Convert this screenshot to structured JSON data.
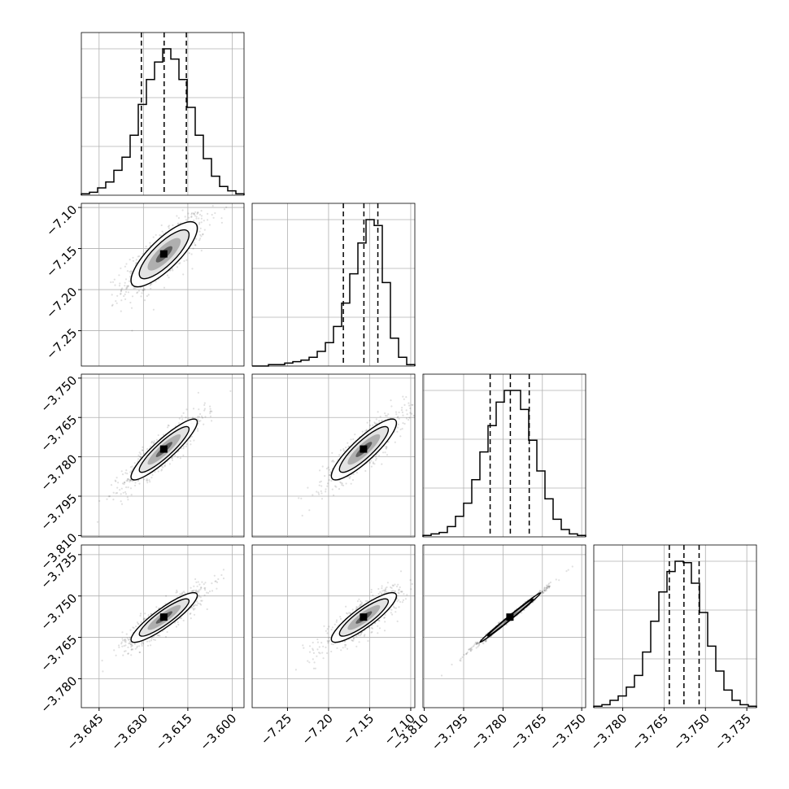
{
  "chart_data": {
    "type": "corner",
    "title": "",
    "grid": true,
    "parameters": [
      {
        "label": "",
        "range": [
          -3.651,
          -3.596
        ],
        "ticks": [
          -3.645,
          -3.63,
          -3.615,
          -3.6
        ],
        "tick_labels": [
          "−3.645",
          "−3.630",
          "−3.615",
          "−3.600"
        ],
        "quantiles": [
          -3.6307,
          -3.623,
          -3.6155
        ]
      },
      {
        "label": "",
        "range": [
          -7.293,
          -7.095
        ],
        "ticks": [
          -7.25,
          -7.2,
          -7.15,
          -7.1
        ],
        "tick_labels": [
          "−7.25",
          "−7.20",
          "−7.15",
          "−7.10"
        ],
        "quantiles": [
          -7.182,
          -7.157,
          -7.14
        ]
      },
      {
        "label": "",
        "range": [
          -3.8105,
          -3.7485
        ],
        "ticks": [
          -3.81,
          -3.795,
          -3.78,
          -3.765,
          -3.75
        ],
        "tick_labels": [
          "−3.810",
          "−3.795",
          "−3.780",
          "−3.765",
          "−3.750"
        ],
        "quantiles": [
          -3.7849,
          -3.7772,
          -3.77
        ]
      },
      {
        "label": "",
        "range": [
          -3.7905,
          -3.7315
        ],
        "ticks": [
          -3.78,
          -3.765,
          -3.75,
          -3.735
        ],
        "tick_labels": [
          "−3.780",
          "−3.765",
          "−3.750",
          "−3.735"
        ],
        "quantiles": [
          -3.7631,
          -3.7578,
          -3.7523
        ]
      }
    ],
    "y_axis_labels": [
      {
        "row": 1,
        "ticks": [
          -7.1,
          -7.15,
          -7.2,
          -7.25
        ],
        "tick_labels": [
          "−7.10",
          "−7.15",
          "−7.20",
          "−7.25"
        ]
      },
      {
        "row": 2,
        "ticks": [
          -3.75,
          -3.765,
          -3.78,
          -3.795,
          -3.81
        ],
        "tick_labels": [
          "−3.750",
          "−3.765",
          "−3.780",
          "−3.795",
          "−3.810"
        ]
      },
      {
        "row": 3,
        "ticks": [
          -3.735,
          -3.75,
          -3.765,
          -3.78
        ],
        "tick_labels": [
          "−3.735",
          "−3.750",
          "−3.765",
          "−3.780"
        ]
      }
    ],
    "histograms": [
      {
        "param": 0,
        "bin_edges_count": 21,
        "counts": [
          0.01,
          0.02,
          0.05,
          0.09,
          0.17,
          0.26,
          0.41,
          0.62,
          0.79,
          0.91,
          1.0,
          0.93,
          0.79,
          0.6,
          0.41,
          0.25,
          0.13,
          0.06,
          0.03,
          0.01
        ]
      },
      {
        "param": 1,
        "bin_edges_count": 21,
        "counts": [
          0.0,
          0.0,
          0.01,
          0.01,
          0.02,
          0.03,
          0.04,
          0.06,
          0.1,
          0.16,
          0.27,
          0.43,
          0.63,
          0.84,
          1.0,
          0.96,
          0.57,
          0.19,
          0.06,
          0.01
        ]
      },
      {
        "param": 2,
        "bin_edges_count": 21,
        "counts": [
          0.01,
          0.02,
          0.03,
          0.07,
          0.14,
          0.23,
          0.39,
          0.58,
          0.76,
          0.92,
          1.0,
          1.0,
          0.87,
          0.66,
          0.45,
          0.26,
          0.12,
          0.05,
          0.02,
          0.01
        ]
      },
      {
        "param": 3,
        "bin_edges_count": 21,
        "counts": [
          0.01,
          0.02,
          0.05,
          0.08,
          0.14,
          0.22,
          0.38,
          0.59,
          0.79,
          0.93,
          1.0,
          0.99,
          0.85,
          0.65,
          0.42,
          0.25,
          0.12,
          0.05,
          0.02,
          0.01
        ]
      }
    ],
    "pairs": [
      {
        "x": 0,
        "y": 1,
        "center": [
          -3.623,
          -7.157
        ],
        "sx": 0.0056,
        "sy": 0.0198,
        "rho": 0.8
      },
      {
        "x": 0,
        "y": 2,
        "center": [
          -3.623,
          -3.7772
        ],
        "sx": 0.0056,
        "sy": 0.0058,
        "rho": 0.9
      },
      {
        "x": 0,
        "y": 3,
        "center": [
          -3.623,
          -3.7578
        ],
        "sx": 0.0056,
        "sy": 0.0045,
        "rho": 0.89
      },
      {
        "x": 1,
        "y": 2,
        "center": [
          -7.157,
          -3.7772
        ],
        "sx": 0.0198,
        "sy": 0.0058,
        "rho": 0.87
      },
      {
        "x": 1,
        "y": 3,
        "center": [
          -7.157,
          -3.7578
        ],
        "sx": 0.0198,
        "sy": 0.0045,
        "rho": 0.87
      },
      {
        "x": 2,
        "y": 3,
        "center": [
          -3.7772,
          -3.7578
        ],
        "sx": 0.0058,
        "sy": 0.0045,
        "rho": 0.995
      }
    ],
    "contour_levels_sigma": [
      0.5,
      1.0,
      1.5,
      2.0
    ]
  }
}
